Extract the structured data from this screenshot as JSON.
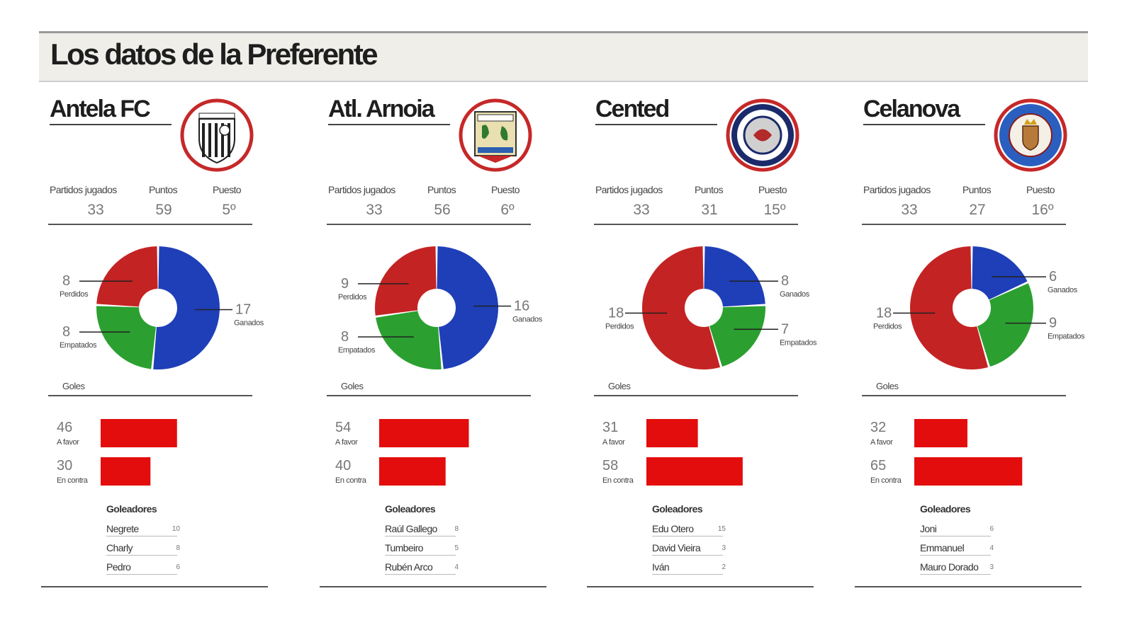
{
  "title": "Los datos de la Preferente",
  "labels": {
    "partidos": "Partidos jugados",
    "puntos": "Puntos",
    "puesto": "Puesto",
    "goles": "Goles",
    "goleadores": "Goleadores",
    "perdidos": "Perdidos",
    "ganados": "Ganados",
    "empatados": "Empatados",
    "a_favor": "A favor",
    "en_contra": "En contra"
  },
  "colors": {
    "ganados": "#1f3fb8",
    "perdidos": "#c42323",
    "empatados": "#2ba030",
    "bar": "#e30d0d",
    "badge_ring": "#c62828"
  },
  "teams": [
    {
      "name": "Antela FC",
      "badge": "antela-fc-crest",
      "partidos": "33",
      "puntos": "59",
      "puesto": "5º",
      "scorers": [
        {
          "name": "Negrete",
          "goals": "10"
        },
        {
          "name": "Charly",
          "goals": "8"
        },
        {
          "name": "Pedro",
          "goals": "6"
        }
      ]
    },
    {
      "name": "Atl. Arnoia",
      "badge": "atl-arnoia-crest",
      "partidos": "33",
      "puntos": "56",
      "puesto": "6º",
      "scorers": [
        {
          "name": "Raúl Gallego",
          "goals": "8"
        },
        {
          "name": "Tumbeiro",
          "goals": "5"
        },
        {
          "name": "Rubén Arco",
          "goals": "4"
        }
      ]
    },
    {
      "name": "Cented",
      "badge": "cented-crest",
      "partidos": "33",
      "puntos": "31",
      "puesto": "15º",
      "scorers": [
        {
          "name": "Edu Otero",
          "goals": "15"
        },
        {
          "name": "David Vieira",
          "goals": "3"
        },
        {
          "name": "Iván",
          "goals": "2"
        }
      ]
    },
    {
      "name": "Celanova",
      "badge": "celanova-crest",
      "partidos": "33",
      "puntos": "27",
      "puesto": "16º",
      "scorers": [
        {
          "name": "Joni",
          "goals": "6"
        },
        {
          "name": "Emmanuel",
          "goals": "4"
        },
        {
          "name": "Mauro Dorado",
          "goals": "3"
        }
      ]
    }
  ],
  "chart_data": [
    {
      "type": "pie",
      "team": "Antela FC",
      "title": "",
      "slices": [
        {
          "label": "Ganados",
          "value": 17
        },
        {
          "label": "Empatados",
          "value": 8
        },
        {
          "label": "Perdidos",
          "value": 8
        }
      ]
    },
    {
      "type": "bar",
      "team": "Antela FC",
      "title": "Goles",
      "categories": [
        "A favor",
        "En contra"
      ],
      "values": [
        46,
        30
      ]
    },
    {
      "type": "pie",
      "team": "Atl. Arnoia",
      "title": "",
      "slices": [
        {
          "label": "Ganados",
          "value": 16
        },
        {
          "label": "Empatados",
          "value": 8
        },
        {
          "label": "Perdidos",
          "value": 9
        }
      ]
    },
    {
      "type": "bar",
      "team": "Atl. Arnoia",
      "title": "Goles",
      "categories": [
        "A favor",
        "En contra"
      ],
      "values": [
        54,
        40
      ]
    },
    {
      "type": "pie",
      "team": "Cented",
      "title": "",
      "slices": [
        {
          "label": "Ganados",
          "value": 8
        },
        {
          "label": "Empatados",
          "value": 7
        },
        {
          "label": "Perdidos",
          "value": 18
        }
      ]
    },
    {
      "type": "bar",
      "team": "Cented",
      "title": "Goles",
      "categories": [
        "A favor",
        "En contra"
      ],
      "values": [
        31,
        58
      ]
    },
    {
      "type": "pie",
      "team": "Celanova",
      "title": "",
      "slices": [
        {
          "label": "Ganados",
          "value": 6
        },
        {
          "label": "Empatados",
          "value": 9
        },
        {
          "label": "Perdidos",
          "value": 18
        }
      ]
    },
    {
      "type": "bar",
      "team": "Celanova",
      "title": "Goles",
      "categories": [
        "A favor",
        "En contra"
      ],
      "values": [
        32,
        65
      ]
    }
  ]
}
